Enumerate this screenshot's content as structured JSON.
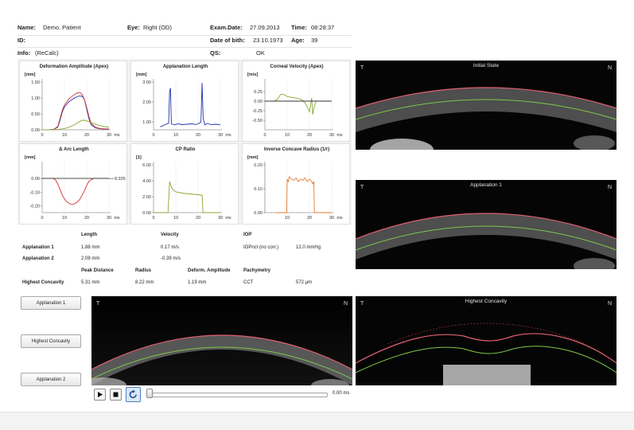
{
  "header": {
    "name_label": "Name:",
    "name_value": "Demo. Patient",
    "eye_label": "Eye:",
    "eye_value": "Right (OD)",
    "examdate_label": "Exam.Date:",
    "examdate_value": "27.09.2013",
    "time_label": "Time:",
    "time_value": "08:28:37",
    "id_label": "ID:",
    "dob_label": "Date of bith:",
    "dob_value": "23.10.1973",
    "age_label": "Age:",
    "age_value": "39",
    "info_label": "Info:",
    "info_value": "(ReCalc)",
    "qs_label": "QS:",
    "qs_value": "OK"
  },
  "chart_data": [
    {
      "type": "line",
      "title": "Deformation Amplitude (Apex)",
      "ylabel": "[mm]",
      "xlabel": "ms",
      "xlim": [
        0,
        30
      ],
      "ylim": [
        0,
        1.5
      ],
      "xticks": [
        "0",
        "10",
        "20",
        "30"
      ],
      "yticks": [
        "0.00",
        "0.50",
        "1.00",
        "1.50"
      ],
      "series": [
        {
          "color": "#2233aa",
          "x": [
            0,
            3,
            5,
            7,
            8,
            9,
            10,
            12,
            14,
            16,
            17,
            18,
            19,
            20,
            21,
            22,
            24,
            26,
            28,
            30
          ],
          "y": [
            0,
            0,
            0.01,
            0.08,
            0.3,
            0.55,
            0.72,
            0.88,
            0.98,
            1.05,
            1.06,
            1.05,
            0.95,
            0.65,
            0.35,
            0.15,
            0.06,
            0.03,
            0.02,
            0.02
          ]
        },
        {
          "color": "#d03030",
          "x": [
            0,
            3,
            5,
            7,
            8,
            9,
            10,
            12,
            14,
            15,
            16,
            17,
            18,
            19,
            20,
            21,
            22,
            24,
            26,
            28,
            30
          ],
          "y": [
            0,
            0,
            0.01,
            0.1,
            0.35,
            0.6,
            0.78,
            0.97,
            1.08,
            1.13,
            1.16,
            1.17,
            1.1,
            0.95,
            0.7,
            0.42,
            0.2,
            0.08,
            0.04,
            0.03,
            0.03
          ]
        },
        {
          "color": "#8aa830",
          "x": [
            0,
            5,
            8,
            10,
            12,
            14,
            16,
            17,
            18,
            19,
            20,
            22,
            24,
            26,
            28,
            30
          ],
          "y": [
            0,
            0,
            0.02,
            0.04,
            0.08,
            0.14,
            0.22,
            0.27,
            0.3,
            0.3,
            0.28,
            0.22,
            0.17,
            0.13,
            0.1,
            0.08
          ]
        }
      ]
    },
    {
      "type": "line",
      "title": "Applanation Length",
      "ylabel": "[mm]",
      "xlabel": "ms",
      "xlim": [
        0,
        30
      ],
      "ylim": [
        0.6,
        3.0
      ],
      "xticks": [
        "0",
        "10",
        "20",
        "30"
      ],
      "yticks": [
        "1.00",
        "2.00",
        "3.00"
      ],
      "series": [
        {
          "color": "#2233aa",
          "x": [
            3,
            5,
            6,
            6.8,
            7.2,
            7.6,
            8,
            8.5,
            9.5,
            11,
            13,
            15,
            17,
            19,
            20.5,
            21.3,
            21.8,
            22.3,
            23,
            24,
            26,
            28,
            30
          ],
          "y": [
            0.75,
            0.85,
            0.9,
            0.92,
            2.5,
            2.7,
            0.9,
            0.88,
            0.85,
            0.9,
            0.86,
            0.88,
            0.9,
            0.87,
            0.92,
            1.0,
            2.95,
            1.2,
            0.85,
            0.92,
            0.86,
            0.88,
            0.85
          ]
        }
      ]
    },
    {
      "type": "line",
      "title": "Corneal Velocity (Apex)",
      "ylabel": "[m/s]",
      "xlabel": "ms",
      "xlim": [
        0,
        30
      ],
      "ylim": [
        -0.75,
        0.5
      ],
      "xticks": [
        "0",
        "10",
        "20",
        "30"
      ],
      "yticks": [
        "-0.50",
        "-0.25",
        "0.00",
        "0.25"
      ],
      "series": [
        {
          "color": "#8aa830",
          "x": [
            0,
            4,
            5,
            6,
            7,
            8,
            9,
            10,
            12,
            14,
            16,
            17,
            18,
            19,
            20,
            20.5,
            21,
            21.5,
            22,
            23,
            24,
            26,
            30
          ],
          "y": [
            0,
            0,
            0.02,
            0.08,
            0.17,
            0.18,
            0.16,
            0.12,
            0.1,
            0.08,
            0.05,
            0.02,
            -0.05,
            -0.15,
            -0.28,
            -0.1,
            0.08,
            -0.35,
            -0.18,
            0,
            0,
            0,
            0
          ]
        },
        {
          "color": "#333333",
          "x": [
            0,
            30
          ],
          "y": [
            0,
            0
          ]
        }
      ]
    },
    {
      "type": "line",
      "title": "Δ Arc Length",
      "ylabel": "[mm]",
      "xlabel": "ms",
      "xlim": [
        0,
        30
      ],
      "ylim": [
        -0.25,
        0.1
      ],
      "xticks": [
        "0",
        "10",
        "20",
        "30"
      ],
      "yticks": [
        "-0.20",
        "-0.10",
        "0.00"
      ],
      "marker_label": "8.935",
      "series": [
        {
          "color": "#d03030",
          "x": [
            0,
            5,
            6,
            7,
            8,
            9,
            10,
            11,
            12,
            13,
            14,
            15,
            16,
            17,
            18,
            19,
            20,
            21,
            22,
            23,
            30
          ],
          "y": [
            0,
            0,
            -0.01,
            -0.04,
            -0.08,
            -0.12,
            -0.15,
            -0.17,
            -0.18,
            -0.19,
            -0.19,
            -0.18,
            -0.17,
            -0.15,
            -0.12,
            -0.09,
            -0.05,
            -0.02,
            -0.01,
            0,
            0
          ]
        },
        {
          "color": "#333333",
          "x": [
            0,
            30
          ],
          "y": [
            0,
            0
          ]
        }
      ]
    },
    {
      "type": "line",
      "title": "CP Ratio",
      "ylabel": "[1]",
      "xlabel": "ms",
      "xlim": [
        0,
        30
      ],
      "ylim": [
        0,
        6
      ],
      "xticks": [
        "0",
        "10",
        "20",
        "30"
      ],
      "yticks": [
        "0.00",
        "2.00",
        "4.00",
        "6.00"
      ],
      "series": [
        {
          "color": "#8aa830",
          "x": [
            0,
            5,
            6.5,
            7.2,
            8,
            9,
            10,
            12,
            14,
            16,
            18,
            20,
            21,
            21.8,
            22.2,
            23,
            26,
            30
          ],
          "y": [
            0,
            0,
            0,
            3.9,
            3.2,
            2.8,
            2.6,
            2.5,
            2.4,
            2.35,
            2.3,
            2.25,
            2.2,
            2.2,
            0,
            0,
            0,
            0
          ]
        }
      ]
    },
    {
      "type": "line",
      "title": "Inverse Concave Radius (1/r)",
      "ylabel": "[mm]",
      "xlabel": "ms",
      "xlim": [
        0,
        30
      ],
      "ylim": [
        0,
        0.2
      ],
      "xticks": [
        "10",
        "20",
        "30"
      ],
      "yticks": [
        "0.00",
        "0.10",
        "0.20"
      ],
      "series": [
        {
          "color": "#e07a30",
          "x": [
            5,
            9.8,
            10,
            10.5,
            11,
            12,
            13,
            14,
            15,
            16,
            17,
            18,
            19,
            20,
            21,
            21.5,
            22,
            22.2,
            30
          ],
          "y": [
            0,
            0,
            0.14,
            0.13,
            0.15,
            0.14,
            0.135,
            0.145,
            0.13,
            0.14,
            0.135,
            0.145,
            0.13,
            0.14,
            0.13,
            0.12,
            0.13,
            0,
            0
          ]
        }
      ]
    }
  ],
  "table": {
    "col_length": "Length",
    "col_velocity": "Velocity",
    "col_iop": "IOP",
    "row_app1_label": "Applanation 1",
    "row_app1_length": "1.88 mm",
    "row_app1_velocity": "0.17 m/s",
    "iop_label": "IOPnct (no corr.)",
    "iop_value": "12.0 mmHg",
    "row_app2_label": "Applanation 2",
    "row_app2_length": "2.08 mm",
    "row_app2_velocity": "-0.39 m/s",
    "col_peak": "Peak Distance",
    "col_radius": "Radius",
    "col_deform": "Deform. Amplitude",
    "col_pachy": "Pachymetry",
    "row_hc_label": "Highest Concavity",
    "row_hc_peak": "5.31 mm",
    "row_hc_radius": "8.22 mm",
    "row_hc_deform": "1.19 mm",
    "cct_label": "CCT",
    "cct_value": "572 µm"
  },
  "buttons": {
    "applanation1": "Applanation 1",
    "highest_concavity": "Highest Concavity",
    "applanation2": "Applanation 2"
  },
  "oct_images": {
    "main_T": "T",
    "main_N": "N",
    "initial_title": "Initial State",
    "initial_T": "T",
    "initial_N": "N",
    "app1_title": "Applanation 1",
    "app1_T": "T",
    "app1_N": "N",
    "hc_title": "Highest Concavity",
    "hc_T": "T",
    "hc_N": "N"
  },
  "player": {
    "play_icon": "play-icon",
    "stop_icon": "stop-icon",
    "replay_icon": "refresh-icon",
    "time_value": "0.00 ms"
  }
}
